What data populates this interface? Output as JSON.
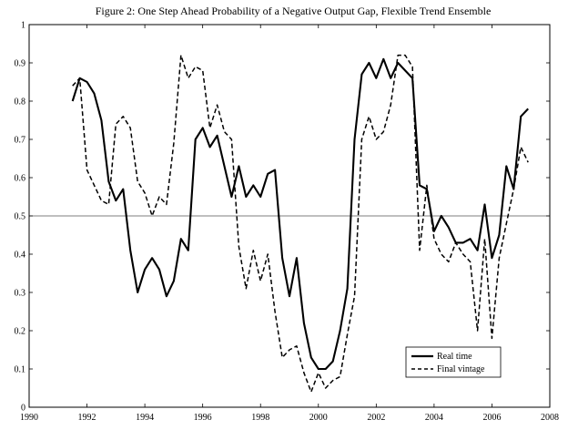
{
  "chart_data": {
    "type": "line",
    "title": "Figure 2: One Step Ahead Probability of a Negative Output Gap, Flexible Trend Ensemble",
    "xlabel": "",
    "ylabel": "",
    "xlim": [
      1990,
      2008
    ],
    "ylim": [
      0,
      1
    ],
    "xticks": [
      1990,
      1992,
      1994,
      1996,
      1998,
      2000,
      2002,
      2004,
      2006,
      2008
    ],
    "yticks": [
      0,
      0.1,
      0.2,
      0.3,
      0.4,
      0.5,
      0.6,
      0.7,
      0.8,
      0.9,
      1
    ],
    "ytick_labels": [
      "0",
      "0.1",
      "0.2",
      "0.3",
      "0.4",
      "0.5",
      "0.6",
      "0.7",
      "0.8",
      "0.9",
      "1"
    ],
    "reference_line": 0.5,
    "grid": false,
    "legend_position": "bottom-right",
    "x": [
      1991.5,
      1991.75,
      1992.0,
      1992.25,
      1992.5,
      1992.75,
      1993.0,
      1993.25,
      1993.5,
      1993.75,
      1994.0,
      1994.25,
      1994.5,
      1994.75,
      1995.0,
      1995.25,
      1995.5,
      1995.75,
      1996.0,
      1996.25,
      1996.5,
      1996.75,
      1997.0,
      1997.25,
      1997.5,
      1997.75,
      1998.0,
      1998.25,
      1998.5,
      1998.75,
      1999.0,
      1999.25,
      1999.5,
      1999.75,
      2000.0,
      2000.25,
      2000.5,
      2000.75,
      2001.0,
      2001.25,
      2001.5,
      2001.75,
      2002.0,
      2002.25,
      2002.5,
      2002.75,
      2003.0,
      2003.25,
      2003.5,
      2003.75,
      2004.0,
      2004.25,
      2004.5,
      2004.75,
      2005.0,
      2005.25,
      2005.5,
      2005.75,
      2006.0,
      2006.25,
      2006.5,
      2006.75,
      2007.0,
      2007.25
    ],
    "series": [
      {
        "name": "Real time",
        "style": "solid",
        "values": [
          0.8,
          0.86,
          0.85,
          0.82,
          0.75,
          0.59,
          0.54,
          0.57,
          0.41,
          0.3,
          0.36,
          0.39,
          0.36,
          0.29,
          0.33,
          0.44,
          0.41,
          0.7,
          0.73,
          0.68,
          0.71,
          0.63,
          0.55,
          0.63,
          0.55,
          0.58,
          0.55,
          0.61,
          0.62,
          0.39,
          0.29,
          0.39,
          0.22,
          0.13,
          0.1,
          0.1,
          0.12,
          0.2,
          0.31,
          0.7,
          0.87,
          0.9,
          0.86,
          0.91,
          0.86,
          0.9,
          0.88,
          0.86,
          0.58,
          0.57,
          0.46,
          0.5,
          0.47,
          0.43,
          0.43,
          0.44,
          0.41,
          0.53,
          0.39,
          0.45,
          0.63,
          0.57,
          0.76,
          0.78
        ]
      },
      {
        "name": "Final vintage",
        "style": "dashed",
        "values": [
          0.84,
          0.86,
          0.62,
          0.58,
          0.54,
          0.53,
          0.74,
          0.76,
          0.73,
          0.59,
          0.56,
          0.5,
          0.55,
          0.53,
          0.69,
          0.92,
          0.86,
          0.89,
          0.88,
          0.73,
          0.79,
          0.72,
          0.7,
          0.42,
          0.31,
          0.41,
          0.33,
          0.4,
          0.25,
          0.13,
          0.15,
          0.16,
          0.09,
          0.04,
          0.09,
          0.05,
          0.07,
          0.08,
          0.19,
          0.29,
          0.7,
          0.76,
          0.7,
          0.72,
          0.79,
          0.92,
          0.92,
          0.89,
          0.41,
          0.58,
          0.44,
          0.4,
          0.38,
          0.43,
          0.4,
          0.38,
          0.2,
          0.44,
          0.18,
          0.39,
          0.48,
          0.57,
          0.68,
          0.64
        ]
      }
    ]
  }
}
